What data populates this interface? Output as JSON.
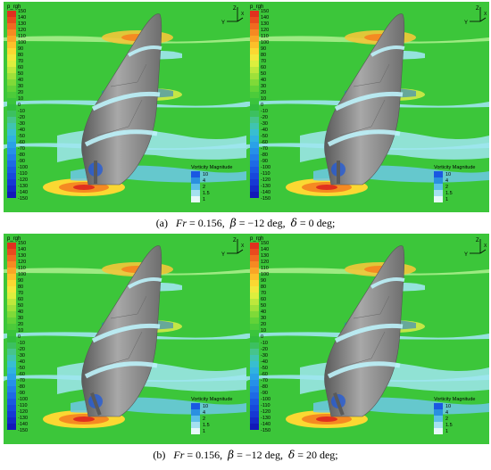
{
  "colorbar": {
    "title": "p_rgh",
    "ticks": [
      "150",
      "140",
      "130",
      "120",
      "110",
      "100",
      "90",
      "80",
      "70",
      "60",
      "50",
      "40",
      "30",
      "20",
      "10",
      "0",
      "-10",
      "-20",
      "-30",
      "-40",
      "-50",
      "-60",
      "-70",
      "-80",
      "-90",
      "-100",
      "-110",
      "-120",
      "-130",
      "-140",
      "-150"
    ],
    "colors": [
      "#e0301e",
      "#e94a1e",
      "#f06a20",
      "#f58a22",
      "#f9a626",
      "#fcc02a",
      "#fbd832",
      "#f2e83c",
      "#dcef3e",
      "#bde83c",
      "#9ee13a",
      "#7fda38",
      "#62d338",
      "#4ccb3a",
      "#3ac43c",
      "#32bd3e",
      "#3cc060",
      "#46c48c",
      "#40c4b0",
      "#38bed0",
      "#30b2e0",
      "#2aa2e6",
      "#2690e8",
      "#227de8",
      "#1e6ae6",
      "#1a58e2",
      "#1848dc",
      "#1638d4",
      "#1428c8",
      "#1218b8"
    ]
  },
  "vorticity": {
    "title": "Vorticity Magnitude",
    "ticks": [
      "10",
      "4",
      "2",
      "1.5",
      "1"
    ]
  },
  "axes": {
    "z": "Z",
    "y": "Y",
    "x": "X"
  },
  "captions": {
    "a": {
      "label": "(a)",
      "fr": "Fr",
      "fr_val": "= 0.156",
      "beta": "β",
      "beta_val": "= −12",
      "deg1": "deg,",
      "delta": "δ",
      "delta_val": "= 0",
      "deg2": "deg;"
    },
    "b": {
      "label": "(b)",
      "fr": "Fr",
      "fr_val": "= 0.156",
      "beta": "β",
      "beta_val": "= −12",
      "deg1": "deg,",
      "delta": "δ",
      "delta_val": "= 20",
      "deg2": "deg;"
    }
  },
  "colors": {
    "field_green": "#3cc63a",
    "hull_gray": "#8a8a8a",
    "wake_cyan": "#9fe6f0",
    "wake_blue": "#2a7fd0"
  }
}
